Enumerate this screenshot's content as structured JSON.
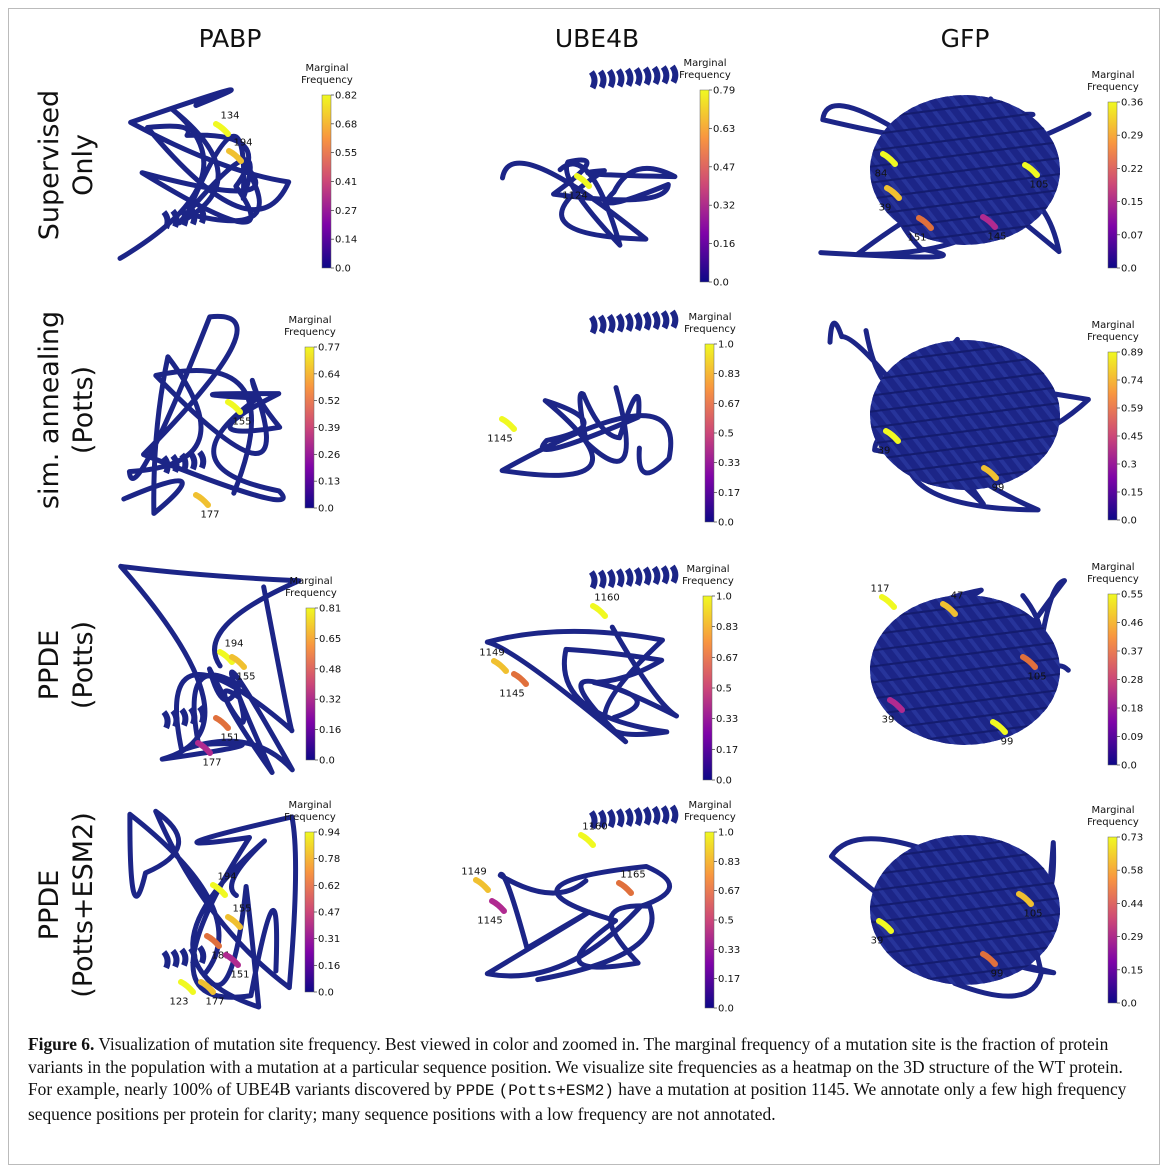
{
  "figure": {
    "columns": [
      "PABP",
      "UBE4B",
      "GFP"
    ],
    "colorbar_title": [
      "Marginal",
      "Frequency"
    ],
    "rows": [
      {
        "label": [
          "Supervised",
          "Only"
        ],
        "panels": [
          {
            "ticks": [
              "0.82",
              "0.68",
              "0.55",
              "0.41",
              "0.27",
              "0.14",
              "0.0"
            ],
            "sites": [
              "134",
              "194"
            ]
          },
          {
            "ticks": [
              "0.79",
              "0.63",
              "0.47",
              "0.32",
              "0.16",
              "0.0"
            ],
            "sites": [
              "1124"
            ]
          },
          {
            "ticks": [
              "0.36",
              "0.29",
              "0.22",
              "0.15",
              "0.07",
              "0.0"
            ],
            "sites": [
              "84",
              "39",
              "151",
              "145",
              "105"
            ]
          }
        ]
      },
      {
        "label": [
          "sim. annealing",
          "(Potts)"
        ],
        "panels": [
          {
            "ticks": [
              "0.77",
              "0.64",
              "0.52",
              "0.39",
              "0.26",
              "0.13",
              "0.0"
            ],
            "sites": [
              "155",
              "177"
            ]
          },
          {
            "ticks": [
              "1.0",
              "0.83",
              "0.67",
              "0.5",
              "0.33",
              "0.17",
              "0.0"
            ],
            "sites": [
              "1145"
            ]
          },
          {
            "ticks": [
              "0.89",
              "0.74",
              "0.59",
              "0.45",
              "0.3",
              "0.15",
              "0.0"
            ],
            "sites": [
              "39",
              "99"
            ]
          }
        ]
      },
      {
        "label": [
          "PPDE",
          "(Potts)"
        ],
        "panels": [
          {
            "ticks": [
              "0.81",
              "0.65",
              "0.48",
              "0.32",
              "0.16",
              "0.0"
            ],
            "sites": [
              "194",
              "155",
              "151",
              "177"
            ]
          },
          {
            "ticks": [
              "1.0",
              "0.83",
              "0.67",
              "0.5",
              "0.33",
              "0.17",
              "0.0"
            ],
            "sites": [
              "1160",
              "1149",
              "1145"
            ]
          },
          {
            "ticks": [
              "0.55",
              "0.46",
              "0.37",
              "0.28",
              "0.18",
              "0.09",
              "0.0"
            ],
            "sites": [
              "117",
              "47",
              "105",
              "39",
              "99"
            ]
          }
        ]
      },
      {
        "label": [
          "PPDE",
          "(Potts+ESM2)"
        ],
        "panels": [
          {
            "ticks": [
              "0.94",
              "0.78",
              "0.62",
              "0.47",
              "0.31",
              "0.16",
              "0.0"
            ],
            "sites": [
              "194",
              "155",
              "181",
              "151",
              "123",
              "177"
            ]
          },
          {
            "ticks": [
              "1.0",
              "0.83",
              "0.67",
              "0.5",
              "0.33",
              "0.17",
              "0.0"
            ],
            "sites": [
              "1160",
              "1149",
              "1165",
              "1145"
            ]
          },
          {
            "ticks": [
              "0.73",
              "0.58",
              "0.44",
              "0.29",
              "0.15",
              "0.0"
            ],
            "sites": [
              "39",
              "105",
              "99"
            ]
          }
        ]
      }
    ]
  },
  "caption": {
    "label": "Figure 6.",
    "text1": "Visualization of mutation site frequency. Best viewed in color and zoomed in. The marginal frequency of a mutation site is the fraction of protein variants in the population with a mutation at a particular sequence position. We visualize site frequencies as a heatmap on the 3D structure of the WT protein. For example, nearly 100% of UBE4B variants discovered by",
    "code1": "PPDE",
    "code2": "(Potts+ESM2)",
    "text2": "have a mutation at position 1145. We annotate only a few high frequency sequence positions per protein for clarity; many sequence positions with a low frequency are not annotated."
  }
}
